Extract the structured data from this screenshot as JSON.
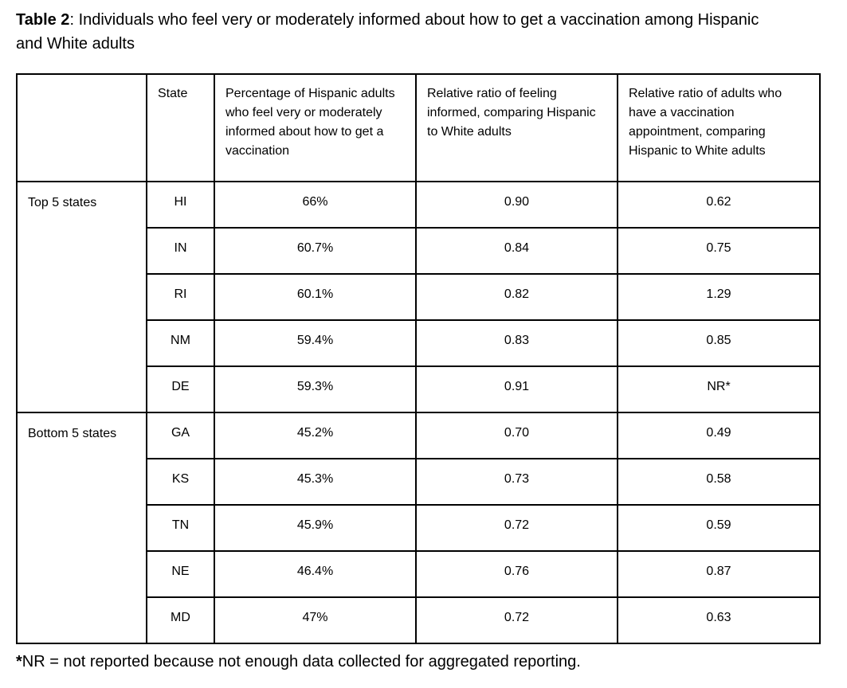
{
  "title": {
    "label": "Table 2",
    "separator": ": ",
    "text": "Individuals who feel very or moderately informed about how to get a vaccination among Hispanic and White adults"
  },
  "table": {
    "headers": {
      "group": "",
      "state": "State",
      "percentage": "Percentage of Hispanic adults who feel very or moderately informed about how to get a vaccination",
      "ratio_informed": "Relative ratio of feeling informed, comparing Hispanic to White adults",
      "ratio_appointment": "Relative ratio of adults who have a vaccination appointment, comparing Hispanic to White adults"
    },
    "groups": [
      {
        "label": "Top 5 states",
        "rows": [
          {
            "state": "HI",
            "percentage": "66%",
            "ratio_informed": "0.90",
            "ratio_appointment": "0.62"
          },
          {
            "state": "IN",
            "percentage": "60.7%",
            "ratio_informed": "0.84",
            "ratio_appointment": "0.75"
          },
          {
            "state": "RI",
            "percentage": "60.1%",
            "ratio_informed": "0.82",
            "ratio_appointment": "1.29"
          },
          {
            "state": "NM",
            "percentage": "59.4%",
            "ratio_informed": "0.83",
            "ratio_appointment": "0.85"
          },
          {
            "state": "DE",
            "percentage": "59.3%",
            "ratio_informed": "0.91",
            "ratio_appointment": "NR*"
          }
        ]
      },
      {
        "label": "Bottom 5 states",
        "rows": [
          {
            "state": "GA",
            "percentage": "45.2%",
            "ratio_informed": "0.70",
            "ratio_appointment": "0.49"
          },
          {
            "state": "KS",
            "percentage": "45.3%",
            "ratio_informed": "0.73",
            "ratio_appointment": "0.58"
          },
          {
            "state": "TN",
            "percentage": "45.9%",
            "ratio_informed": "0.72",
            "ratio_appointment": "0.59"
          },
          {
            "state": "NE",
            "percentage": "46.4%",
            "ratio_informed": "0.76",
            "ratio_appointment": "0.87"
          },
          {
            "state": "MD",
            "percentage": "47%",
            "ratio_informed": "0.72",
            "ratio_appointment": "0.63"
          }
        ]
      }
    ]
  },
  "footnote": {
    "marker": "*",
    "text": "NR = not reported because not enough data collected for aggregated reporting."
  },
  "colors": {
    "text": "#000000",
    "border": "#000000",
    "background": "#ffffff"
  }
}
